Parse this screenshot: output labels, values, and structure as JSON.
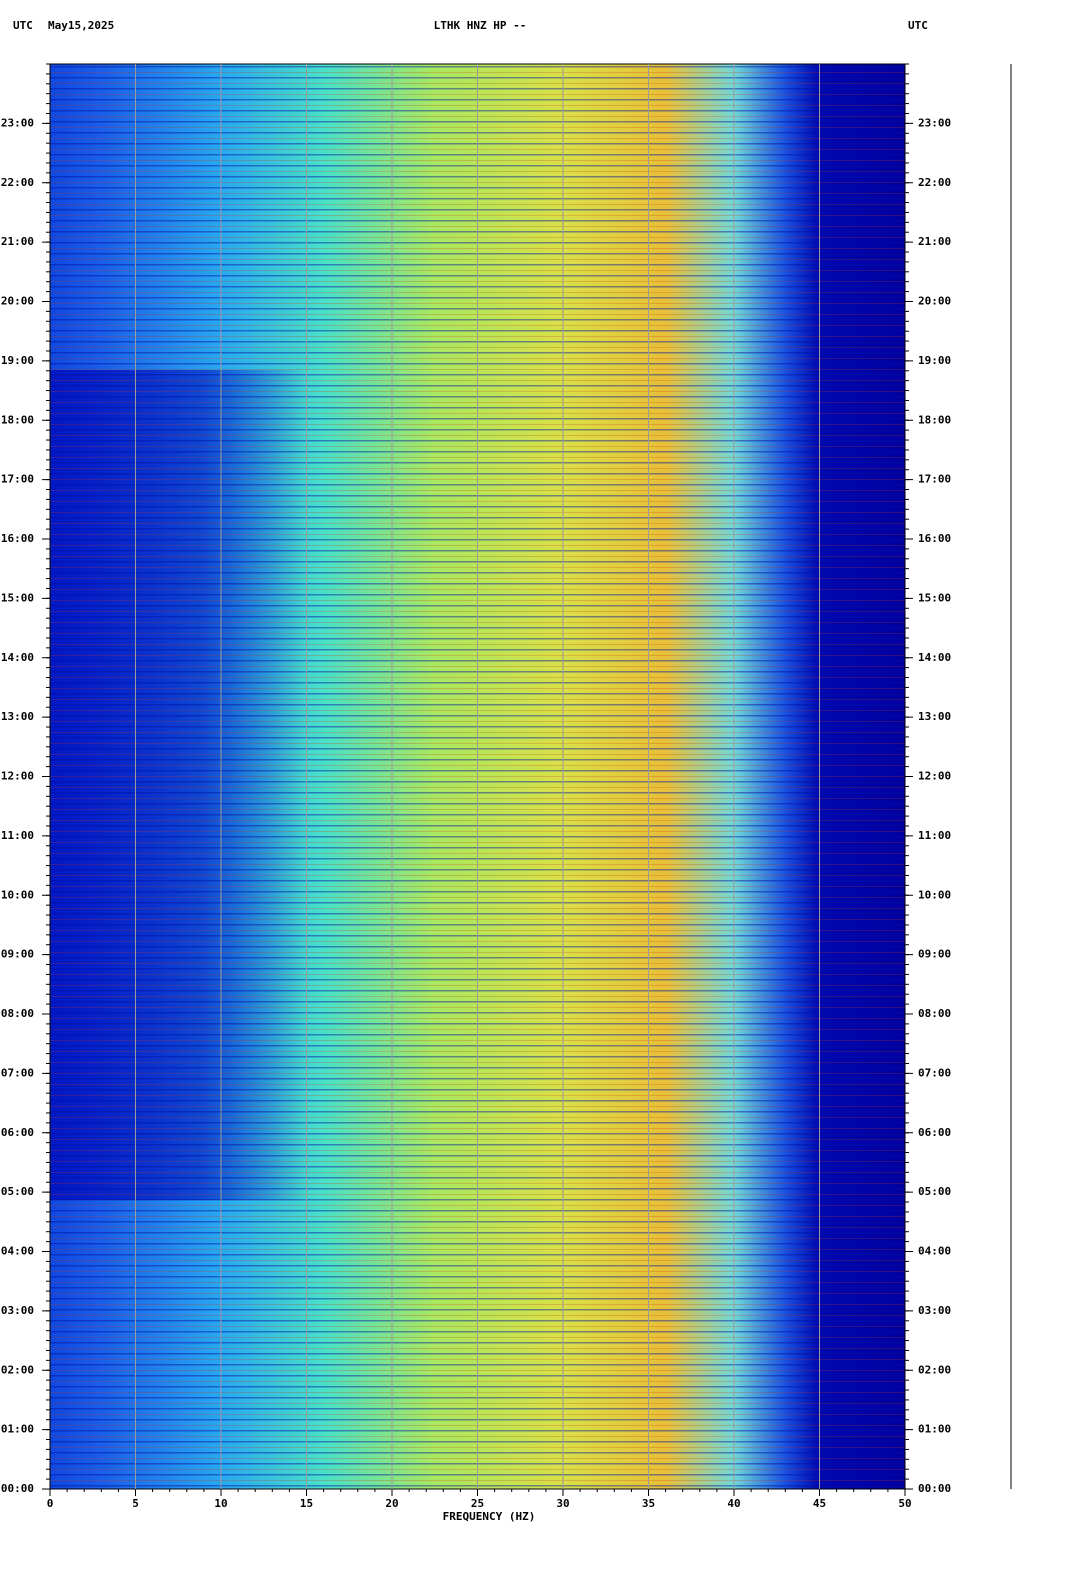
{
  "chart_data": {
    "type": "spectrogram",
    "title": "LTHK HNZ HP --",
    "timezone_left": "UTC",
    "date": "May15,2025",
    "timezone_right": "UTC",
    "xlabel": "FREQUENCY (HZ)",
    "xlim": [
      0,
      50
    ],
    "xticks": [
      0,
      5,
      10,
      15,
      20,
      25,
      30,
      35,
      40,
      45,
      50
    ],
    "xminor_step": 1,
    "ylim": [
      0,
      24
    ],
    "yticks": [
      {
        "value": 0,
        "label": "00:00"
      },
      {
        "value": 1,
        "label": "01:00"
      },
      {
        "value": 2,
        "label": "02:00"
      },
      {
        "value": 3,
        "label": "03:00"
      },
      {
        "value": 4,
        "label": "04:00"
      },
      {
        "value": 5,
        "label": "05:00"
      },
      {
        "value": 6,
        "label": "06:00"
      },
      {
        "value": 7,
        "label": "07:00"
      },
      {
        "value": 8,
        "label": "08:00"
      },
      {
        "value": 9,
        "label": "09:00"
      },
      {
        "value": 10,
        "label": "10:00"
      },
      {
        "value": 11,
        "label": "11:00"
      },
      {
        "value": 12,
        "label": "12:00"
      },
      {
        "value": 13,
        "label": "13:00"
      },
      {
        "value": 14,
        "label": "14:00"
      },
      {
        "value": 15,
        "label": "15:00"
      },
      {
        "value": 16,
        "label": "16:00"
      },
      {
        "value": 17,
        "label": "17:00"
      },
      {
        "value": 18,
        "label": "18:00"
      },
      {
        "value": 19,
        "label": "19:00"
      },
      {
        "value": 20,
        "label": "20:00"
      },
      {
        "value": 21,
        "label": "21:00"
      },
      {
        "value": 22,
        "label": "22:00"
      },
      {
        "value": 23,
        "label": "23:00"
      }
    ],
    "yminor_per_major": 6,
    "grid": true
  }
}
